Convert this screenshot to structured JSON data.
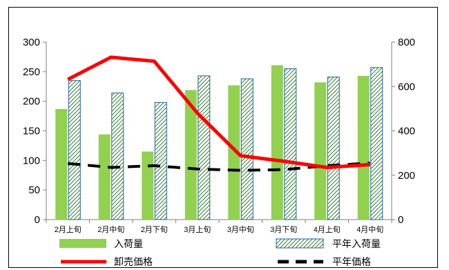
{
  "chart_data": {
    "type": "bar",
    "categories": [
      "2月上旬",
      "2月中旬",
      "2月下旬",
      "3月上旬",
      "3月中旬",
      "3月下旬",
      "4月上旬",
      "4月中旬"
    ],
    "series": [
      {
        "name": "入荷量",
        "type": "bar",
        "axis": "left",
        "color": "#92d050",
        "values": [
          187,
          144,
          115,
          219,
          227,
          261,
          232,
          243
        ]
      },
      {
        "name": "平年入荷量",
        "type": "bar",
        "axis": "left",
        "color": "#2e7d32",
        "pattern": "diagonal-hatch",
        "values": [
          235,
          214,
          198,
          243,
          238,
          255,
          241,
          257
        ]
      },
      {
        "name": "卸売価格",
        "type": "line",
        "axis": "right",
        "color": "#ff0000",
        "style": "solid",
        "values": [
          632,
          732,
          714,
          480,
          288,
          263,
          235,
          248
        ]
      },
      {
        "name": "平年価格",
        "type": "line",
        "axis": "right",
        "color": "#000000",
        "style": "dashed",
        "values": [
          253,
          235,
          243,
          228,
          222,
          225,
          243,
          255
        ]
      }
    ],
    "y_left": {
      "ylim": [
        0,
        300
      ],
      "ticks": [
        "0",
        "50",
        "100",
        "150",
        "200",
        "250",
        "300"
      ]
    },
    "y_right": {
      "ylim": [
        0,
        800
      ],
      "ticks": [
        "0",
        "200",
        "400",
        "600",
        "800"
      ]
    },
    "grid": false,
    "legend_position": "bottom"
  }
}
